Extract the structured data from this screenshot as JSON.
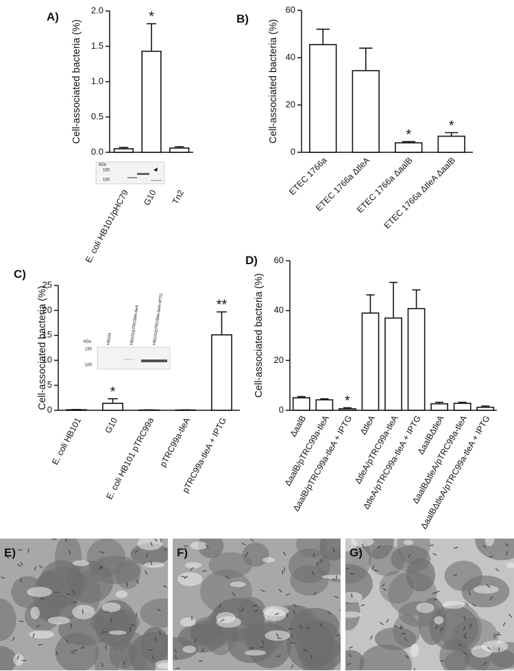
{
  "chart_data": [
    {
      "type": "bar",
      "title": "A)",
      "ylabel": "Cell-associated bacteria (%)",
      "categories": [
        "E. coli HB101/pHC79",
        "G10",
        "Tn2"
      ],
      "values": [
        0.05,
        1.43,
        0.06
      ],
      "errors": [
        0.02,
        0.39,
        0.02
      ],
      "significance": [
        null,
        "*",
        null
      ],
      "ylim": [
        0,
        2
      ],
      "yticks": [
        {
          "value": 0,
          "label": "0.0"
        },
        0.5,
        {
          "value": 1,
          "label": "1.0"
        },
        1.5,
        {
          "value": 2,
          "label": "2.0"
        }
      ],
      "color": "#ffffff",
      "inset_labels": [
        "kDa",
        "150",
        "100"
      ]
    },
    {
      "type": "bar",
      "title": "B)",
      "ylabel": "Cell-associated bacteria (%)",
      "categories": [
        "ETEC 1766a",
        "ETEC 1766a ΔtleA",
        "ETEC 1766a ΔaalB",
        "ETEC 1766a ΔtleA ΔaalB"
      ],
      "values": [
        45.5,
        34.5,
        4,
        6.8
      ],
      "errors": [
        6.5,
        9.5,
        0.5,
        1.5
      ],
      "significance": [
        null,
        null,
        "*",
        "*"
      ],
      "ylim": [
        0,
        60
      ],
      "yticks": [
        0,
        20,
        40,
        60
      ],
      "color": "#ffffff"
    },
    {
      "type": "bar",
      "title": "C)",
      "ylabel": "Cell-associated bacteria (%)",
      "categories": [
        "E. coli HB101",
        "G10",
        "E. coli HB101 pTRC99a",
        "pTRC99a-tleA",
        "pTRC99a-tleA + IPTG"
      ],
      "values": [
        0.1,
        1.4,
        0.05,
        0.05,
        15.1
      ],
      "errors": [
        0.05,
        0.9,
        0.03,
        0.03,
        4.6
      ],
      "significance": [
        null,
        "*",
        null,
        null,
        "**"
      ],
      "ylim": [
        0,
        25
      ],
      "yticks": [
        0,
        5,
        10,
        15,
        20,
        25
      ],
      "color": "#ffffff",
      "inset_labels": [
        "kDa",
        "150",
        "100",
        "HB101",
        "HB101/pTRC99A-tleA",
        "HB101/pTRC99A-tleA+IPTG"
      ]
    },
    {
      "type": "bar",
      "title": "D)",
      "ylabel": "Cell-associated bacteria (%)",
      "categories": [
        "ΔaalB",
        "ΔaalB/pTRC99a-tleA",
        "ΔaalB/pTRC99a-tleA + IPTG",
        "ΔtleA",
        "ΔtleA/pTRC99a-tleA",
        "ΔtleA/pTRC99a-tleA + IPTG",
        "ΔaalBΔtleA",
        "ΔaalBΔtleA/pTRC99a-tleA",
        "ΔaalBΔtleA/pTRC99a-tleA + IPTG"
      ],
      "values": [
        5,
        4.2,
        0.6,
        39,
        37,
        40.8,
        2.6,
        2.8,
        1.2
      ],
      "errors": [
        0.5,
        0.4,
        0.4,
        7.3,
        14.3,
        7.5,
        0.6,
        0.4,
        0.5
      ],
      "significance": [
        null,
        null,
        "*",
        null,
        null,
        null,
        null,
        null,
        null
      ],
      "ylim": [
        0,
        60
      ],
      "yticks": [
        0,
        20,
        40,
        60
      ],
      "color": "#ffffff"
    }
  ],
  "micrographs": [
    "E)",
    "F)",
    "G)"
  ]
}
